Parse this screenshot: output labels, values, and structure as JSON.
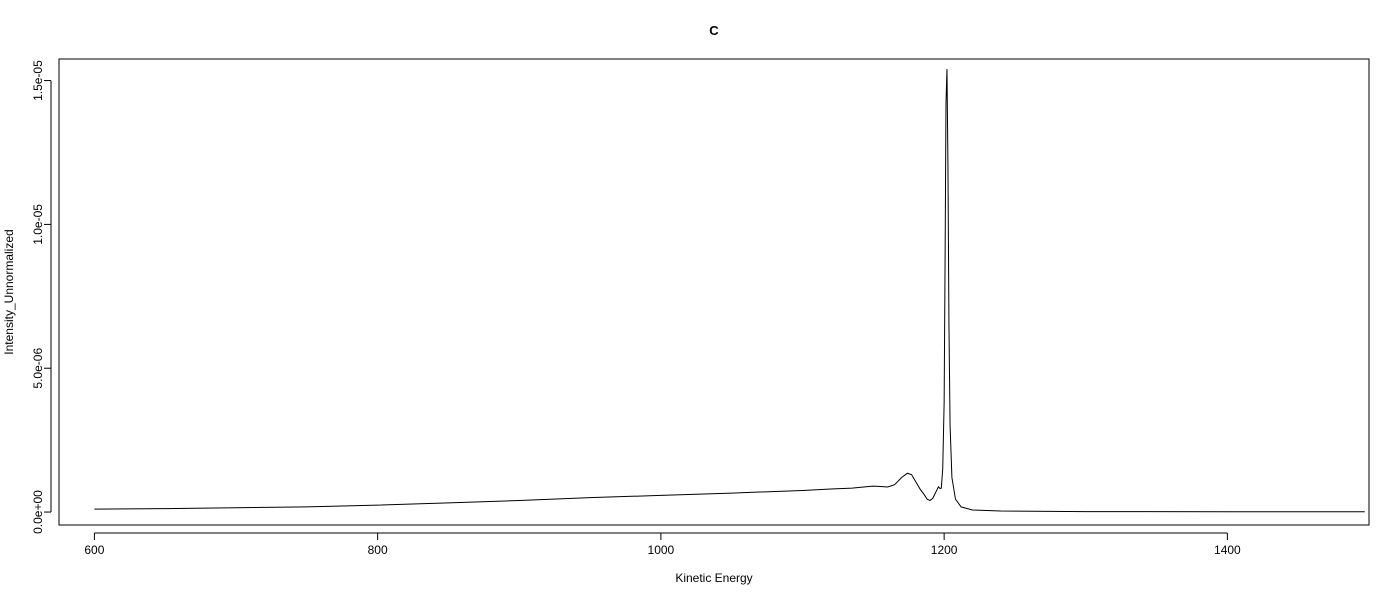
{
  "chart_data": {
    "type": "line",
    "title": "C",
    "xlabel": "Kinetic Energy",
    "ylabel": "Intensity_Unnormalized",
    "xlim": [
      575,
      1500
    ],
    "ylim": [
      -4.5e-07,
      1.575e-05
    ],
    "x_ticks": [
      600,
      800,
      1000,
      1200,
      1400
    ],
    "x_tick_labels": [
      "600",
      "800",
      "1000",
      "1200",
      "1400"
    ],
    "y_ticks": [
      0,
      5e-06,
      1e-05,
      1.5e-05
    ],
    "y_tick_labels": [
      "0.0e+00",
      "5.0e-06",
      "1.0e-05",
      "1.5e-05"
    ],
    "grid": false,
    "legend": "none",
    "series": [
      {
        "color": "#000000",
        "x": [
          600,
          650,
          700,
          750,
          800,
          850,
          900,
          950,
          1000,
          1050,
          1100,
          1120,
          1135,
          1145,
          1150,
          1155,
          1160,
          1165,
          1170,
          1174,
          1177,
          1180,
          1183,
          1186,
          1188,
          1190,
          1192,
          1194,
          1196,
          1197,
          1198,
          1199,
          1200,
          1200.7,
          1201.3,
          1202,
          1202.7,
          1203.4,
          1204.2,
          1205.5,
          1208,
          1212,
          1220,
          1240,
          1300,
          1400,
          1497
        ],
        "y": [
          1e-07,
          1.2e-07,
          1.5e-07,
          1.8e-07,
          2.4e-07,
          3.2e-07,
          4e-07,
          5e-07,
          5.8e-07,
          6.6e-07,
          7.5e-07,
          8e-07,
          8.3e-07,
          8.8e-07,
          9e-07,
          8.9e-07,
          8.7e-07,
          9.5e-07,
          1.2e-06,
          1.35e-06,
          1.3e-06,
          1.05e-06,
          8e-07,
          6e-07,
          4.5e-07,
          4e-07,
          4.8e-07,
          6.8e-07,
          8.8e-07,
          8.2e-07,
          8.3e-07,
          1.5e-06,
          3.8e-06,
          9e-06,
          1.42e-05,
          1.54e-05,
          1.2e-05,
          6.5e-06,
          3e-06,
          1.2e-06,
          4.5e-07,
          1.8e-07,
          7e-08,
          3.5e-08,
          1.5e-08,
          1e-08,
          1e-08
        ]
      }
    ]
  }
}
